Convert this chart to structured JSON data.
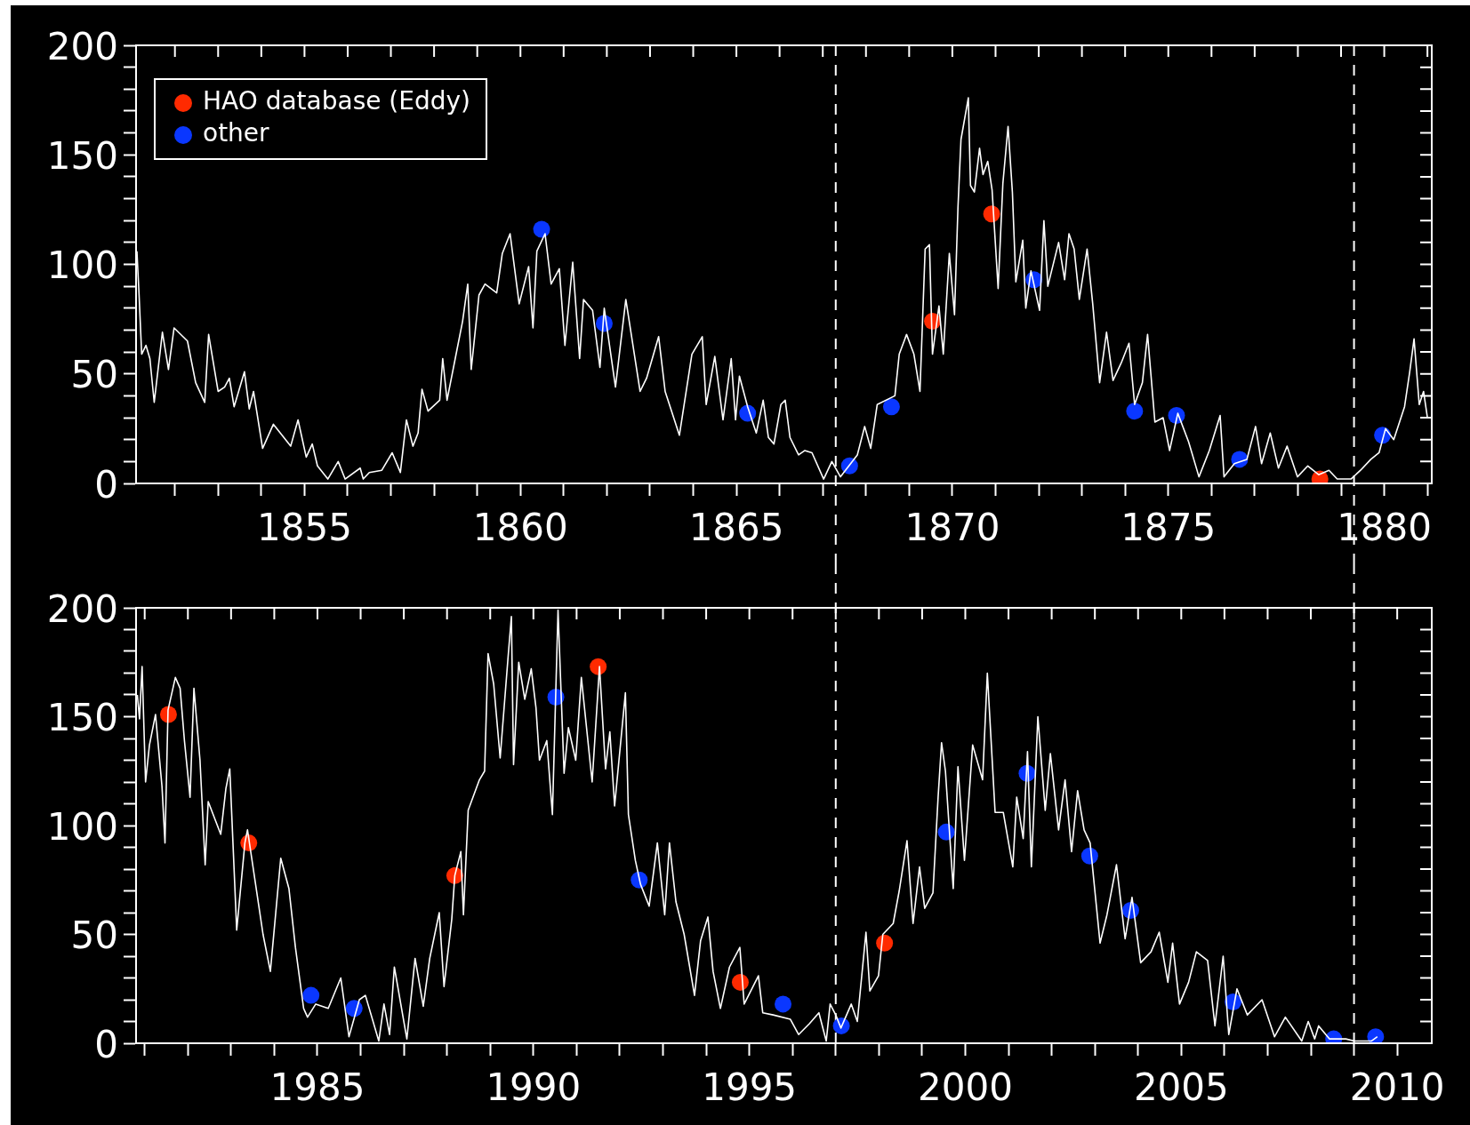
{
  "chart_data": [
    {
      "type": "line",
      "legend": "top left",
      "grid": false,
      "xlim": [
        1851.1,
        1881.1
      ],
      "ylim": [
        0,
        200
      ],
      "xticks": [
        {
          "value": 1852,
          "label": null
        },
        {
          "value": 1853,
          "label": null
        },
        {
          "value": 1854,
          "label": null
        },
        1855,
        {
          "value": 1856,
          "label": null
        },
        {
          "value": 1857,
          "label": null
        },
        {
          "value": 1858,
          "label": null
        },
        {
          "value": 1859,
          "label": null
        },
        1860,
        {
          "value": 1861,
          "label": null
        },
        {
          "value": 1862,
          "label": null
        },
        {
          "value": 1863,
          "label": null
        },
        {
          "value": 1864,
          "label": null
        },
        1865,
        {
          "value": 1866,
          "label": null
        },
        {
          "value": 1867,
          "label": null
        },
        {
          "value": 1868,
          "label": null
        },
        {
          "value": 1869,
          "label": null
        },
        1870,
        {
          "value": 1871,
          "label": null
        },
        {
          "value": 1872,
          "label": null
        },
        {
          "value": 1873,
          "label": null
        },
        {
          "value": 1874,
          "label": null
        },
        1875,
        {
          "value": 1876,
          "label": null
        },
        {
          "value": 1877,
          "label": null
        },
        {
          "value": 1878,
          "label": null
        },
        {
          "value": 1879,
          "label": null
        },
        1880,
        {
          "value": 1881,
          "label": null
        }
      ],
      "yticks": [
        0,
        {
          "value": 10,
          "label": null
        },
        {
          "value": 20,
          "label": null
        },
        {
          "value": 30,
          "label": null
        },
        {
          "value": 40,
          "label": null
        },
        50,
        {
          "value": 60,
          "label": null
        },
        {
          "value": 70,
          "label": null
        },
        {
          "value": 80,
          "label": null
        },
        {
          "value": 90,
          "label": null
        },
        100,
        {
          "value": 110,
          "label": null
        },
        {
          "value": 120,
          "label": null
        },
        {
          "value": 130,
          "label": null
        },
        {
          "value": 140,
          "label": null
        },
        150,
        {
          "value": 160,
          "label": null
        },
        {
          "value": 170,
          "label": null
        },
        {
          "value": 180,
          "label": null
        },
        {
          "value": 190,
          "label": null
        },
        200
      ],
      "ref_lines": [
        {
          "axis": "x",
          "value": 1867.3,
          "color": "#ffffff",
          "line_style": "dashed"
        },
        {
          "axis": "x",
          "value": 1879.3,
          "color": "#ffffff",
          "line_style": "dashed"
        }
      ],
      "series": [
        {
          "type": "line",
          "color": "#ffffff",
          "marker": "none",
          "line_style": "solid",
          "x": [
            1851.12,
            1851.17,
            1851.23,
            1851.33,
            1851.42,
            1851.52,
            1851.71,
            1851.85,
            1851.98,
            1852.29,
            1852.48,
            1852.69,
            1852.78,
            1853.0,
            1853.15,
            1853.26,
            1853.37,
            1853.61,
            1853.72,
            1853.82,
            1854.03,
            1854.28,
            1854.68,
            1854.85,
            1855.04,
            1855.18,
            1855.3,
            1855.54,
            1855.78,
            1855.94,
            1856.29,
            1856.36,
            1856.5,
            1856.79,
            1857.03,
            1857.22,
            1857.36,
            1857.51,
            1857.63,
            1857.72,
            1857.86,
            1858.13,
            1858.2,
            1858.3,
            1858.49,
            1858.66,
            1858.78,
            1858.86,
            1859.04,
            1859.18,
            1859.45,
            1859.58,
            1859.76,
            1859.97,
            1860.19,
            1860.29,
            1860.38,
            1860.57,
            1860.71,
            1860.9,
            1861.03,
            1861.21,
            1861.37,
            1861.46,
            1861.67,
            1861.84,
            1861.94,
            1862.2,
            1862.44,
            1862.77,
            1862.92,
            1863.2,
            1863.35,
            1863.68,
            1863.97,
            1864.21,
            1864.3,
            1864.5,
            1864.69,
            1864.88,
            1864.98,
            1865.07,
            1865.26,
            1865.46,
            1865.62,
            1865.74,
            1865.87,
            1866.03,
            1866.13,
            1866.24,
            1866.44,
            1866.58,
            1866.75,
            1867.02,
            1867.21,
            1867.41,
            1867.8,
            1867.97,
            1868.11,
            1868.26,
            1868.67,
            1868.77,
            1868.94,
            1869.11,
            1869.25,
            1869.37,
            1869.47,
            1869.54,
            1869.69,
            1869.79,
            1869.93,
            1870.05,
            1870.13,
            1870.2,
            1870.37,
            1870.42,
            1870.51,
            1870.63,
            1870.71,
            1870.82,
            1870.92,
            1871.06,
            1871.17,
            1871.29,
            1871.39,
            1871.47,
            1871.63,
            1871.7,
            1871.82,
            1872.02,
            1872.12,
            1872.21,
            1872.46,
            1872.6,
            1872.7,
            1872.82,
            1872.94,
            1873.12,
            1873.25,
            1873.41,
            1873.57,
            1873.72,
            1873.91,
            1874.09,
            1874.22,
            1874.4,
            1874.52,
            1874.69,
            1874.88,
            1875.03,
            1875.22,
            1875.47,
            1875.71,
            1875.95,
            1876.2,
            1876.29,
            1876.53,
            1876.82,
            1877.02,
            1877.16,
            1877.36,
            1877.55,
            1877.75,
            1877.99,
            1878.23,
            1878.48,
            1878.72,
            1878.91,
            1879.23,
            1879.45,
            1879.69,
            1879.88,
            1880.03,
            1880.22,
            1880.47,
            1880.59,
            1880.69,
            1880.81,
            1880.91,
            1881.0
          ],
          "values": [
            106,
            86,
            59,
            63,
            57,
            37,
            69,
            52,
            71,
            65,
            46,
            37,
            68,
            42,
            44,
            48,
            35,
            51,
            34,
            42,
            16,
            27,
            17,
            29,
            12,
            18,
            8,
            2,
            10,
            2,
            7,
            2,
            5,
            6,
            14,
            5,
            29,
            17,
            23,
            43,
            33,
            38,
            57,
            38,
            57,
            74,
            91,
            52,
            86,
            91,
            87,
            105,
            114,
            82,
            99,
            71,
            106,
            114,
            91,
            98,
            63,
            101,
            57,
            84,
            79,
            53,
            80,
            44,
            84,
            42,
            48,
            67,
            42,
            22,
            59,
            67,
            36,
            58,
            29,
            57,
            29,
            49,
            35,
            23,
            38,
            21,
            18,
            36,
            38,
            21,
            13,
            15,
            14,
            2,
            10,
            3,
            13,
            26,
            16,
            36,
            40,
            59,
            68,
            59,
            42,
            107,
            109,
            59,
            81,
            59,
            105,
            77,
            126,
            157,
            176,
            136,
            133,
            153,
            141,
            147,
            134,
            89,
            137,
            163,
            133,
            92,
            111,
            80,
            97,
            79,
            120,
            90,
            110,
            93,
            114,
            107,
            84,
            107,
            82,
            46,
            69,
            47,
            55,
            64,
            36,
            46,
            68,
            28,
            30,
            15,
            32,
            19,
            3,
            15,
            31,
            3,
            9,
            11,
            26,
            9,
            23,
            7,
            17,
            3,
            8,
            4,
            6,
            2,
            2,
            6,
            11,
            14,
            25,
            20,
            35,
            51,
            66,
            36,
            42,
            30
          ]
        },
        {
          "type": "scatter",
          "name": "HAO database (Eddy)",
          "color": "#ff2a00",
          "marker": "circle",
          "x": [
            1869.54,
            1870.91,
            1878.51
          ],
          "values": [
            74,
            123,
            2
          ]
        },
        {
          "type": "scatter",
          "name": "other",
          "color": "#0a37ff",
          "marker": "circle",
          "x": [
            1860.49,
            1861.94,
            1865.26,
            1867.62,
            1868.59,
            1871.89,
            1874.22,
            1875.19,
            1876.65,
            1879.96
          ],
          "values": [
            116,
            73,
            32,
            8,
            35,
            93,
            33,
            31,
            11,
            22
          ]
        }
      ]
    },
    {
      "type": "line",
      "legend": false,
      "grid": false,
      "xlim": [
        1980.8,
        2010.8
      ],
      "ylim": [
        0,
        200
      ],
      "xticks": [
        {
          "value": 1981,
          "label": null
        },
        {
          "value": 1982,
          "label": null
        },
        {
          "value": 1983,
          "label": null
        },
        {
          "value": 1984,
          "label": null
        },
        1985,
        {
          "value": 1986,
          "label": null
        },
        {
          "value": 1987,
          "label": null
        },
        {
          "value": 1988,
          "label": null
        },
        {
          "value": 1989,
          "label": null
        },
        1990,
        {
          "value": 1991,
          "label": null
        },
        {
          "value": 1992,
          "label": null
        },
        {
          "value": 1993,
          "label": null
        },
        {
          "value": 1994,
          "label": null
        },
        1995,
        {
          "value": 1996,
          "label": null
        },
        {
          "value": 1997,
          "label": null
        },
        {
          "value": 1998,
          "label": null
        },
        {
          "value": 1999,
          "label": null
        },
        2000,
        {
          "value": 2001,
          "label": null
        },
        {
          "value": 2002,
          "label": null
        },
        {
          "value": 2003,
          "label": null
        },
        {
          "value": 2004,
          "label": null
        },
        2005,
        {
          "value": 2006,
          "label": null
        },
        {
          "value": 2007,
          "label": null
        },
        {
          "value": 2008,
          "label": null
        },
        {
          "value": 2009,
          "label": null
        },
        2010
      ],
      "yticks": [
        0,
        {
          "value": 10,
          "label": null
        },
        {
          "value": 20,
          "label": null
        },
        {
          "value": 30,
          "label": null
        },
        {
          "value": 40,
          "label": null
        },
        50,
        {
          "value": 60,
          "label": null
        },
        {
          "value": 70,
          "label": null
        },
        {
          "value": 80,
          "label": null
        },
        {
          "value": 90,
          "label": null
        },
        100,
        {
          "value": 110,
          "label": null
        },
        {
          "value": 120,
          "label": null
        },
        {
          "value": 130,
          "label": null
        },
        {
          "value": 140,
          "label": null
        },
        150,
        {
          "value": 160,
          "label": null
        },
        {
          "value": 170,
          "label": null
        },
        {
          "value": 180,
          "label": null
        },
        {
          "value": 190,
          "label": null
        },
        200
      ],
      "ref_lines": [
        {
          "axis": "x",
          "value": 1997.0,
          "color": "#ffffff",
          "line_style": "dashed"
        },
        {
          "axis": "x",
          "value": 2009.0,
          "color": "#ffffff",
          "line_style": "dashed"
        }
      ],
      "series": [
        {
          "type": "line",
          "color": "#ffffff",
          "marker": "none",
          "line_style": "solid",
          "x": [
            1980.83,
            1980.88,
            1980.94,
            1981.02,
            1981.11,
            1981.25,
            1981.4,
            1981.47,
            1981.54,
            1981.71,
            1981.82,
            1981.92,
            1982.05,
            1982.14,
            1982.28,
            1982.4,
            1982.47,
            1982.76,
            1982.88,
            1982.97,
            1983.13,
            1983.32,
            1983.38,
            1983.74,
            1983.91,
            1984.15,
            1984.34,
            1984.49,
            1984.68,
            1984.77,
            1984.96,
            1985.25,
            1985.54,
            1985.73,
            1985.97,
            1986.11,
            1986.42,
            1986.54,
            1986.67,
            1986.78,
            1987.07,
            1987.26,
            1987.45,
            1987.6,
            1987.82,
            1987.93,
            1988.11,
            1988.18,
            1988.32,
            1988.38,
            1988.49,
            1988.6,
            1988.75,
            1988.87,
            1988.95,
            1989.08,
            1989.23,
            1989.42,
            1989.49,
            1989.54,
            1989.66,
            1989.8,
            1989.95,
            1990.06,
            1990.14,
            1990.31,
            1990.44,
            1990.57,
            1990.71,
            1990.81,
            1990.98,
            1991.11,
            1991.36,
            1991.53,
            1991.67,
            1991.77,
            1991.88,
            1992.13,
            1992.2,
            1992.36,
            1992.48,
            1992.68,
            1992.87,
            1993.04,
            1993.15,
            1993.3,
            1993.49,
            1993.73,
            1993.87,
            1994.04,
            1994.16,
            1994.33,
            1994.54,
            1994.78,
            1994.88,
            1995.21,
            1995.31,
            1995.55,
            1995.95,
            1996.14,
            1996.39,
            1996.61,
            1996.78,
            1996.87,
            1997.0,
            1997.12,
            1997.36,
            1997.5,
            1997.7,
            1997.79,
            1997.99,
            1998.09,
            1998.33,
            1998.47,
            1998.65,
            1998.79,
            1998.94,
            1999.06,
            1999.25,
            1999.37,
            1999.45,
            1999.54,
            1999.72,
            1999.83,
            1999.98,
            2000.17,
            2000.4,
            2000.51,
            2000.69,
            2000.88,
            2001.1,
            2001.19,
            2001.34,
            2001.44,
            2001.53,
            2001.68,
            2001.85,
            2001.97,
            2002.16,
            2002.31,
            2002.46,
            2002.6,
            2002.75,
            2002.89,
            2003.12,
            2003.28,
            2003.5,
            2003.7,
            2003.86,
            2004.06,
            2004.3,
            2004.49,
            2004.69,
            2004.8,
            2004.96,
            2005.17,
            2005.35,
            2005.61,
            2005.78,
            2005.97,
            2006.1,
            2006.29,
            2006.53,
            2006.87,
            2007.16,
            2007.41,
            2007.79,
            2007.94,
            2008.09,
            2008.18,
            2008.43,
            2008.81,
            2009.01,
            2009.4,
            2009.54
          ],
          "values": [
            160,
            149,
            173,
            120,
            137,
            151,
            118,
            92,
            153,
            168,
            163,
            139,
            113,
            163,
            130,
            82,
            111,
            96,
            117,
            126,
            52,
            92,
            98,
            50,
            33,
            85,
            71,
            44,
            16,
            12,
            18,
            16,
            30,
            3,
            20,
            22,
            1,
            18,
            4,
            35,
            2,
            39,
            17,
            39,
            60,
            26,
            57,
            77,
            88,
            59,
            107,
            113,
            121,
            125,
            179,
            165,
            131,
            179,
            196,
            128,
            175,
            158,
            172,
            154,
            130,
            139,
            105,
            199,
            124,
            145,
            130,
            168,
            120,
            173,
            126,
            143,
            109,
            161,
            105,
            84,
            73,
            63,
            92,
            59,
            92,
            65,
            50,
            22,
            47,
            58,
            33,
            16,
            35,
            44,
            18,
            31,
            14,
            13,
            11,
            4,
            9,
            14,
            1,
            18,
            13,
            7,
            18,
            10,
            51,
            24,
            31,
            50,
            55,
            70,
            93,
            55,
            81,
            62,
            69,
            113,
            138,
            125,
            71,
            127,
            84,
            137,
            121,
            170,
            106,
            106,
            81,
            113,
            94,
            134,
            81,
            150,
            107,
            133,
            98,
            121,
            88,
            116,
            98,
            92,
            46,
            59,
            82,
            48,
            67,
            37,
            42,
            51,
            28,
            46,
            18,
            28,
            42,
            38,
            8,
            40,
            4,
            25,
            13,
            20,
            3,
            12,
            1,
            10,
            2,
            8,
            2,
            2,
            1,
            1,
            3
          ]
        },
        {
          "type": "scatter",
          "color": "#ff2a00",
          "marker": "circle",
          "x": [
            1981.55,
            1983.41,
            1988.18,
            1991.5,
            1994.79,
            1998.13
          ],
          "values": [
            151,
            92,
            77,
            173,
            28,
            46
          ]
        },
        {
          "type": "scatter",
          "color": "#0a37ff",
          "marker": "circle",
          "x": [
            1984.85,
            1985.85,
            1990.52,
            1992.45,
            1995.78,
            1997.13,
            1999.56,
            2001.43,
            2002.88,
            2003.83,
            2006.2,
            2008.53,
            2009.5
          ],
          "values": [
            22,
            16,
            159,
            75,
            18,
            8,
            97,
            124,
            86,
            61,
            19,
            2,
            3
          ]
        }
      ]
    }
  ]
}
